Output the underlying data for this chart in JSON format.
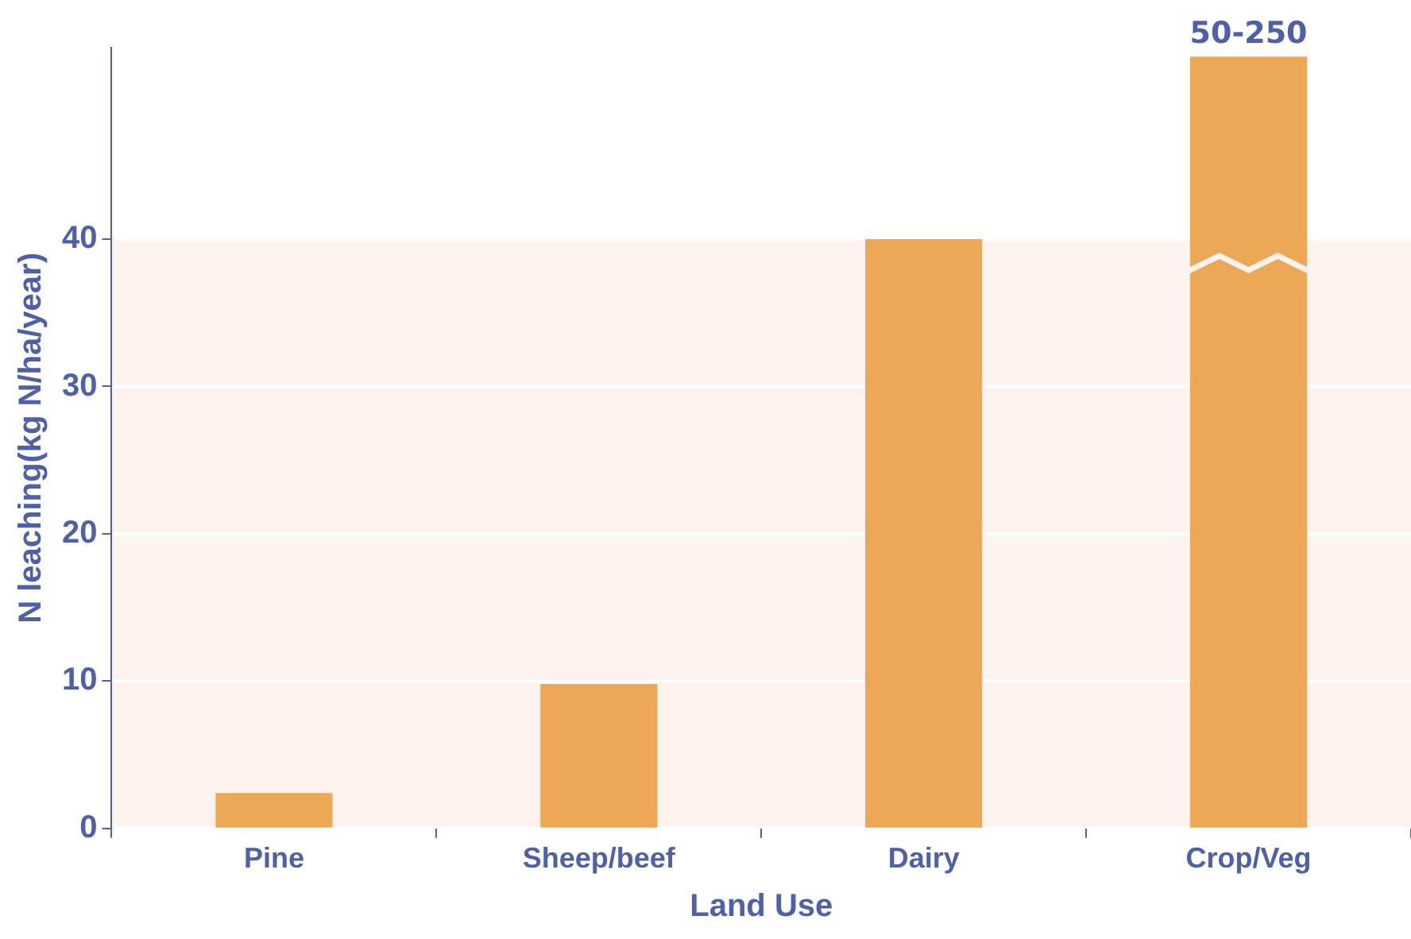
{
  "chart_data": {
    "type": "bar",
    "xlabel": "Land Use",
    "ylabel": "N leaching(kg N/ha/year)",
    "categories": [
      "Pine",
      "Sheep/beef",
      "Dairy",
      "Crop/Veg"
    ],
    "values": [
      2.4,
      9.8,
      40,
      52.4
    ],
    "value_labels": [
      null,
      null,
      null,
      "50-250"
    ],
    "color": "#eca857",
    "ylim": [
      0,
      53
    ],
    "yticks": [
      0,
      10,
      20,
      30,
      40
    ],
    "grid": "y",
    "legend": false,
    "bands": [
      {
        "axis": "y",
        "from": 0,
        "to": 40,
        "color": "#fdf3ee"
      }
    ]
  }
}
